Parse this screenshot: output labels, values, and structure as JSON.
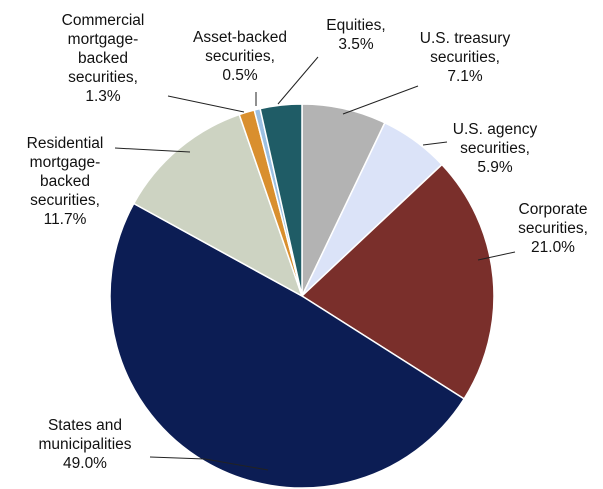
{
  "chart_data": {
    "type": "pie",
    "title": "",
    "slices": [
      {
        "label": "U.S. treasury securities",
        "value": 7.1,
        "value_label": "7.1%",
        "color": "#b3b3b3",
        "lines": [
          "U.S. treasury",
          "securities,",
          "7.1%"
        ]
      },
      {
        "label": "U.S. agency securities",
        "value": 5.9,
        "value_label": "5.9%",
        "color": "#dbe3f8",
        "lines": [
          "U.S. agency",
          "securities,",
          "5.9%"
        ]
      },
      {
        "label": "Corporate securities",
        "value": 21.0,
        "value_label": "21.0%",
        "color": "#7a2f2b",
        "lines": [
          "Corporate",
          "securities,",
          "21.0%"
        ]
      },
      {
        "label": "States and municipalities",
        "value": 49.0,
        "value_label": "49.0%",
        "color": "#0c1d54",
        "lines": [
          "States and",
          "municipalities",
          "49.0%"
        ]
      },
      {
        "label": "Residential mortgage-backed securities",
        "value": 11.7,
        "value_label": "11.7%",
        "color": "#cdd3c2",
        "lines": [
          "Residential",
          "mortgage-",
          "backed",
          "securities,",
          "11.7%"
        ]
      },
      {
        "label": "Commercial mortgage-backed securities",
        "value": 1.3,
        "value_label": "1.3%",
        "color": "#d98f2e",
        "lines": [
          "Commercial",
          "mortgage-",
          "backed",
          "securities,",
          "1.3%"
        ]
      },
      {
        "label": "Asset-backed securities",
        "value": 0.5,
        "value_label": "0.5%",
        "color": "#9cc0e2",
        "lines": [
          "Asset-backed",
          "securities,",
          "0.5%"
        ]
      },
      {
        "label": "Equities",
        "value": 3.5,
        "value_label": "3.5%",
        "color": "#1f5c66",
        "lines": [
          "Equities,",
          "3.5%"
        ]
      }
    ]
  }
}
